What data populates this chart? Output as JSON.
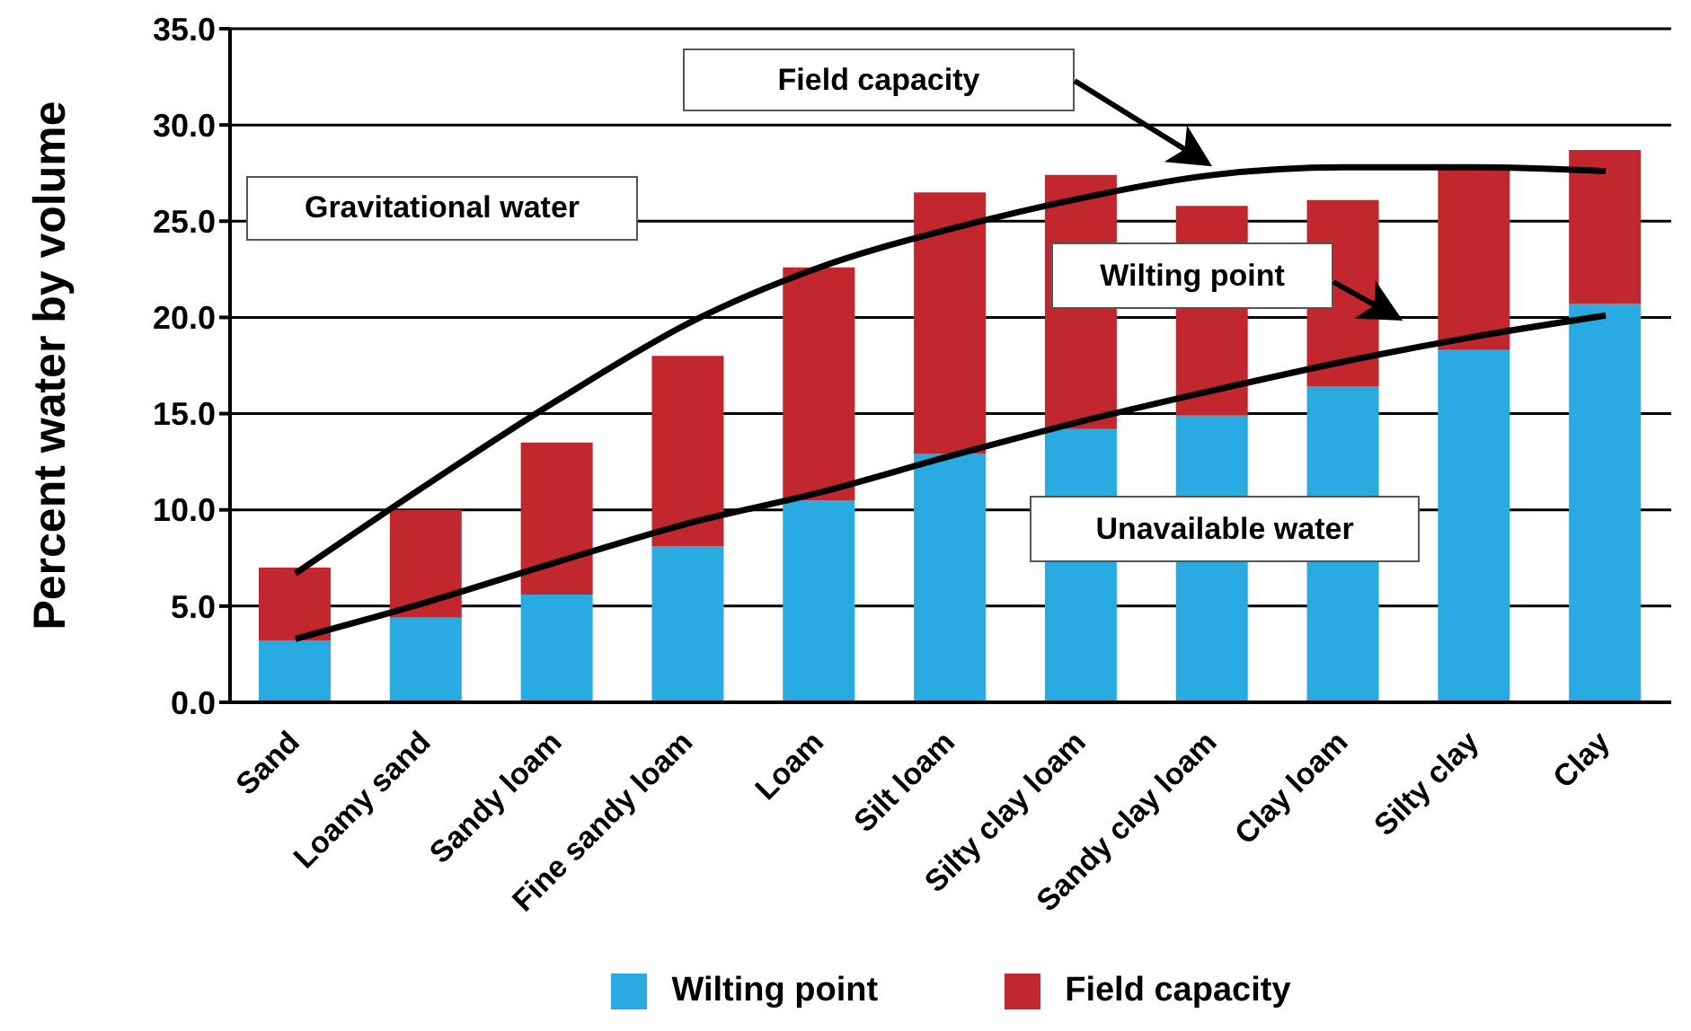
{
  "chart_data": {
    "type": "bar",
    "ylabel": "Percent water by volume",
    "categories": [
      "Sand",
      "Loamy sand",
      "Sandy loam",
      "Fine sandy loam",
      "Loam",
      "Silt loam",
      "Silty clay loam",
      "Sandy clay loam",
      "Clay loam",
      "Silty clay",
      "Clay"
    ],
    "stacked": true,
    "series": [
      {
        "name": "Wilting point",
        "color": "#29abe2",
        "values": [
          3.2,
          4.4,
          5.6,
          8.1,
          10.5,
          12.9,
          14.2,
          14.9,
          16.4,
          18.3,
          20.7
        ]
      },
      {
        "name": "Field capacity",
        "color": "#c1272d",
        "values": [
          3.8,
          5.6,
          7.9,
          9.9,
          12.1,
          13.6,
          13.2,
          10.9,
          9.7,
          9.5,
          8.0
        ]
      },
      {
        "type": "line",
        "color": "#000000",
        "values": [
          6.7,
          11.3,
          15.7,
          19.7,
          22.6,
          24.6,
          26.2,
          27.4,
          27.8,
          27.8,
          27.6
        ]
      },
      {
        "type": "line",
        "color": "#000000",
        "values": [
          3.3,
          5.2,
          7.3,
          9.3,
          10.9,
          12.8,
          14.6,
          16.2,
          17.7,
          19.0,
          20.1
        ]
      }
    ],
    "ylim": [
      0,
      35
    ],
    "yticks": [
      {
        "value": 0,
        "label": "0.0"
      },
      {
        "value": 5,
        "label": "5.0"
      },
      {
        "value": 10,
        "label": "10.0"
      },
      {
        "value": 15,
        "label": "15.0"
      },
      {
        "value": 20,
        "label": "20.0"
      },
      {
        "value": 25,
        "label": "25.0"
      },
      {
        "value": 30,
        "label": "30.0"
      },
      {
        "value": 35,
        "label": "35.0"
      }
    ],
    "grid": "y",
    "legend": "bottom",
    "marker": "none",
    "annotations": [
      "Field capacity",
      "Gravitational water",
      "Wilting point",
      "Unavailable water"
    ]
  }
}
